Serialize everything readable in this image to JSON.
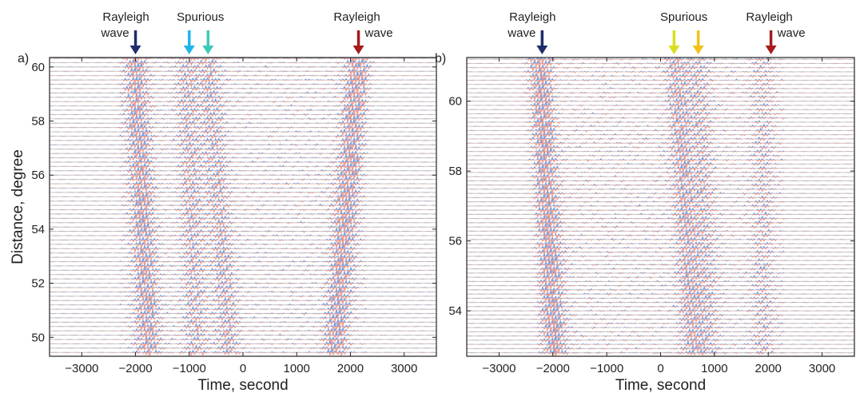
{
  "chart_data": [
    {
      "type": "wiggle-seismogram",
      "panel_label": "a)",
      "xlabel": "Time, second",
      "ylabel": "Distance, degree",
      "xlim": [
        -3600,
        3600
      ],
      "ylim": [
        49.3,
        60.35
      ],
      "x_ticks": [
        -3000,
        -2000,
        -1000,
        0,
        1000,
        2000,
        3000
      ],
      "x_tick_labels": [
        "−3000",
        "−2000",
        "−1000",
        "0",
        "1000",
        "2000",
        "3000"
      ],
      "y_ticks": [
        50,
        52,
        54,
        56,
        58,
        60
      ],
      "y_tick_labels": [
        "50",
        "52",
        "54",
        "56",
        "58",
        "60"
      ],
      "trace_step": 0.16,
      "colors": {
        "positive": "#6f94d8",
        "negative": "#f08c7a",
        "baseline": "#d9d9d9"
      },
      "annotations": [
        {
          "lines": [
            "Rayleigh",
            "wave"
          ],
          "x": -2000,
          "color": "#1f2d6b",
          "align": "left"
        },
        {
          "lines": [
            "Spurious"
          ],
          "x": -1000,
          "color": "#1fb6ea",
          "align": "label-right"
        },
        {
          "lines": [],
          "x": -650,
          "color": "#3dc9b8",
          "align": "none"
        },
        {
          "lines": [
            "Rayleigh",
            "wave"
          ],
          "x": 2150,
          "color": "#a51c1c",
          "align": "right"
        }
      ],
      "phases": [
        {
          "x_at_top": -2000,
          "x_at_bottom": -1750,
          "amplitude": 1.0
        },
        {
          "x_at_top": 2150,
          "x_at_bottom": 1700,
          "amplitude": 1.1
        },
        {
          "x_at_top": -1050,
          "x_at_bottom": -850,
          "amplitude": 0.55
        },
        {
          "x_at_top": -650,
          "x_at_bottom": -250,
          "amplitude": 0.6
        }
      ]
    },
    {
      "type": "wiggle-seismogram",
      "panel_label": "b)",
      "xlabel": "Time, second",
      "ylabel": "",
      "xlim": [
        -3600,
        3600
      ],
      "ylim": [
        52.7,
        61.25
      ],
      "x_ticks": [
        -3000,
        -2000,
        -1000,
        0,
        1000,
        2000,
        3000
      ],
      "x_tick_labels": [
        "−3000",
        "−2000",
        "−1000",
        "0",
        "1000",
        "2000",
        "3000"
      ],
      "y_ticks": [
        54,
        56,
        58,
        60
      ],
      "y_tick_labels": [
        "54",
        "56",
        "58",
        "60"
      ],
      "trace_step": 0.12,
      "colors": {
        "positive": "#6f94d8",
        "negative": "#f08c7a",
        "baseline": "#d9d9d9"
      },
      "annotations": [
        {
          "lines": [
            "Rayleigh",
            "wave"
          ],
          "x": -2200,
          "color": "#1f2d6b",
          "align": "left"
        },
        {
          "lines": [],
          "x": 250,
          "color": "#d8df1f",
          "align": "none"
        },
        {
          "lines": [
            "Spurious"
          ],
          "x": 700,
          "color": "#f2c21a",
          "align": "label-center"
        },
        {
          "lines": [
            "Rayleigh",
            "wave"
          ],
          "x": 2050,
          "color": "#a51c1c",
          "align": "right"
        }
      ],
      "phases": [
        {
          "x_at_top": -2250,
          "x_at_bottom": -1950,
          "amplitude": 1.1
        },
        {
          "x_at_top": 300,
          "x_at_bottom": 600,
          "amplitude": 0.7
        },
        {
          "x_at_top": 700,
          "x_at_bottom": 900,
          "amplitude": 0.45
        },
        {
          "x_at_top": 1900,
          "x_at_bottom": 1900,
          "amplitude": 0.35
        }
      ]
    }
  ]
}
